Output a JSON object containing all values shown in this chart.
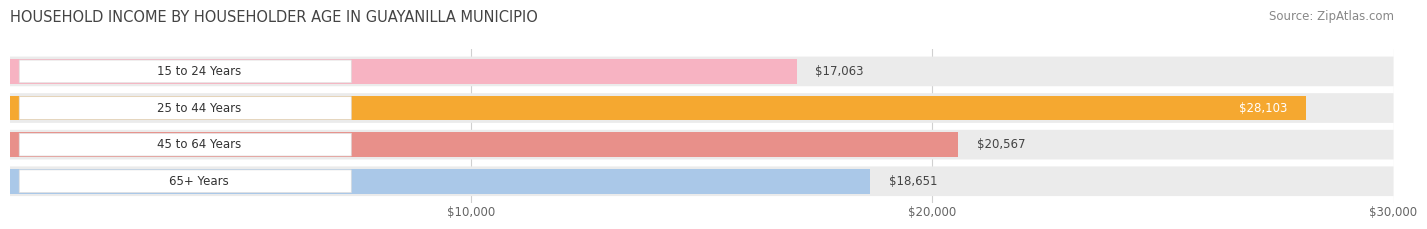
{
  "title": "HOUSEHOLD INCOME BY HOUSEHOLDER AGE IN GUAYANILLA MUNICIPIO",
  "source": "Source: ZipAtlas.com",
  "categories": [
    "15 to 24 Years",
    "25 to 44 Years",
    "45 to 64 Years",
    "65+ Years"
  ],
  "values": [
    17063,
    28103,
    20567,
    18651
  ],
  "bar_colors": [
    "#f7b3c2",
    "#f5a830",
    "#e8908a",
    "#aac8e8"
  ],
  "value_labels": [
    "$17,063",
    "$28,103",
    "$20,567",
    "$18,651"
  ],
  "xlim": [
    0,
    30000
  ],
  "xticks": [
    10000,
    20000,
    30000
  ],
  "xtick_labels": [
    "$10,000",
    "$20,000",
    "$30,000"
  ],
  "title_fontsize": 10.5,
  "source_fontsize": 8.5,
  "bar_label_fontsize": 8.5,
  "value_label_fontsize": 8.5,
  "background_color": "#ffffff",
  "row_bg_color": "#ebebeb",
  "grid_color": "#d0d0d0",
  "label_box_color": "#ffffff"
}
